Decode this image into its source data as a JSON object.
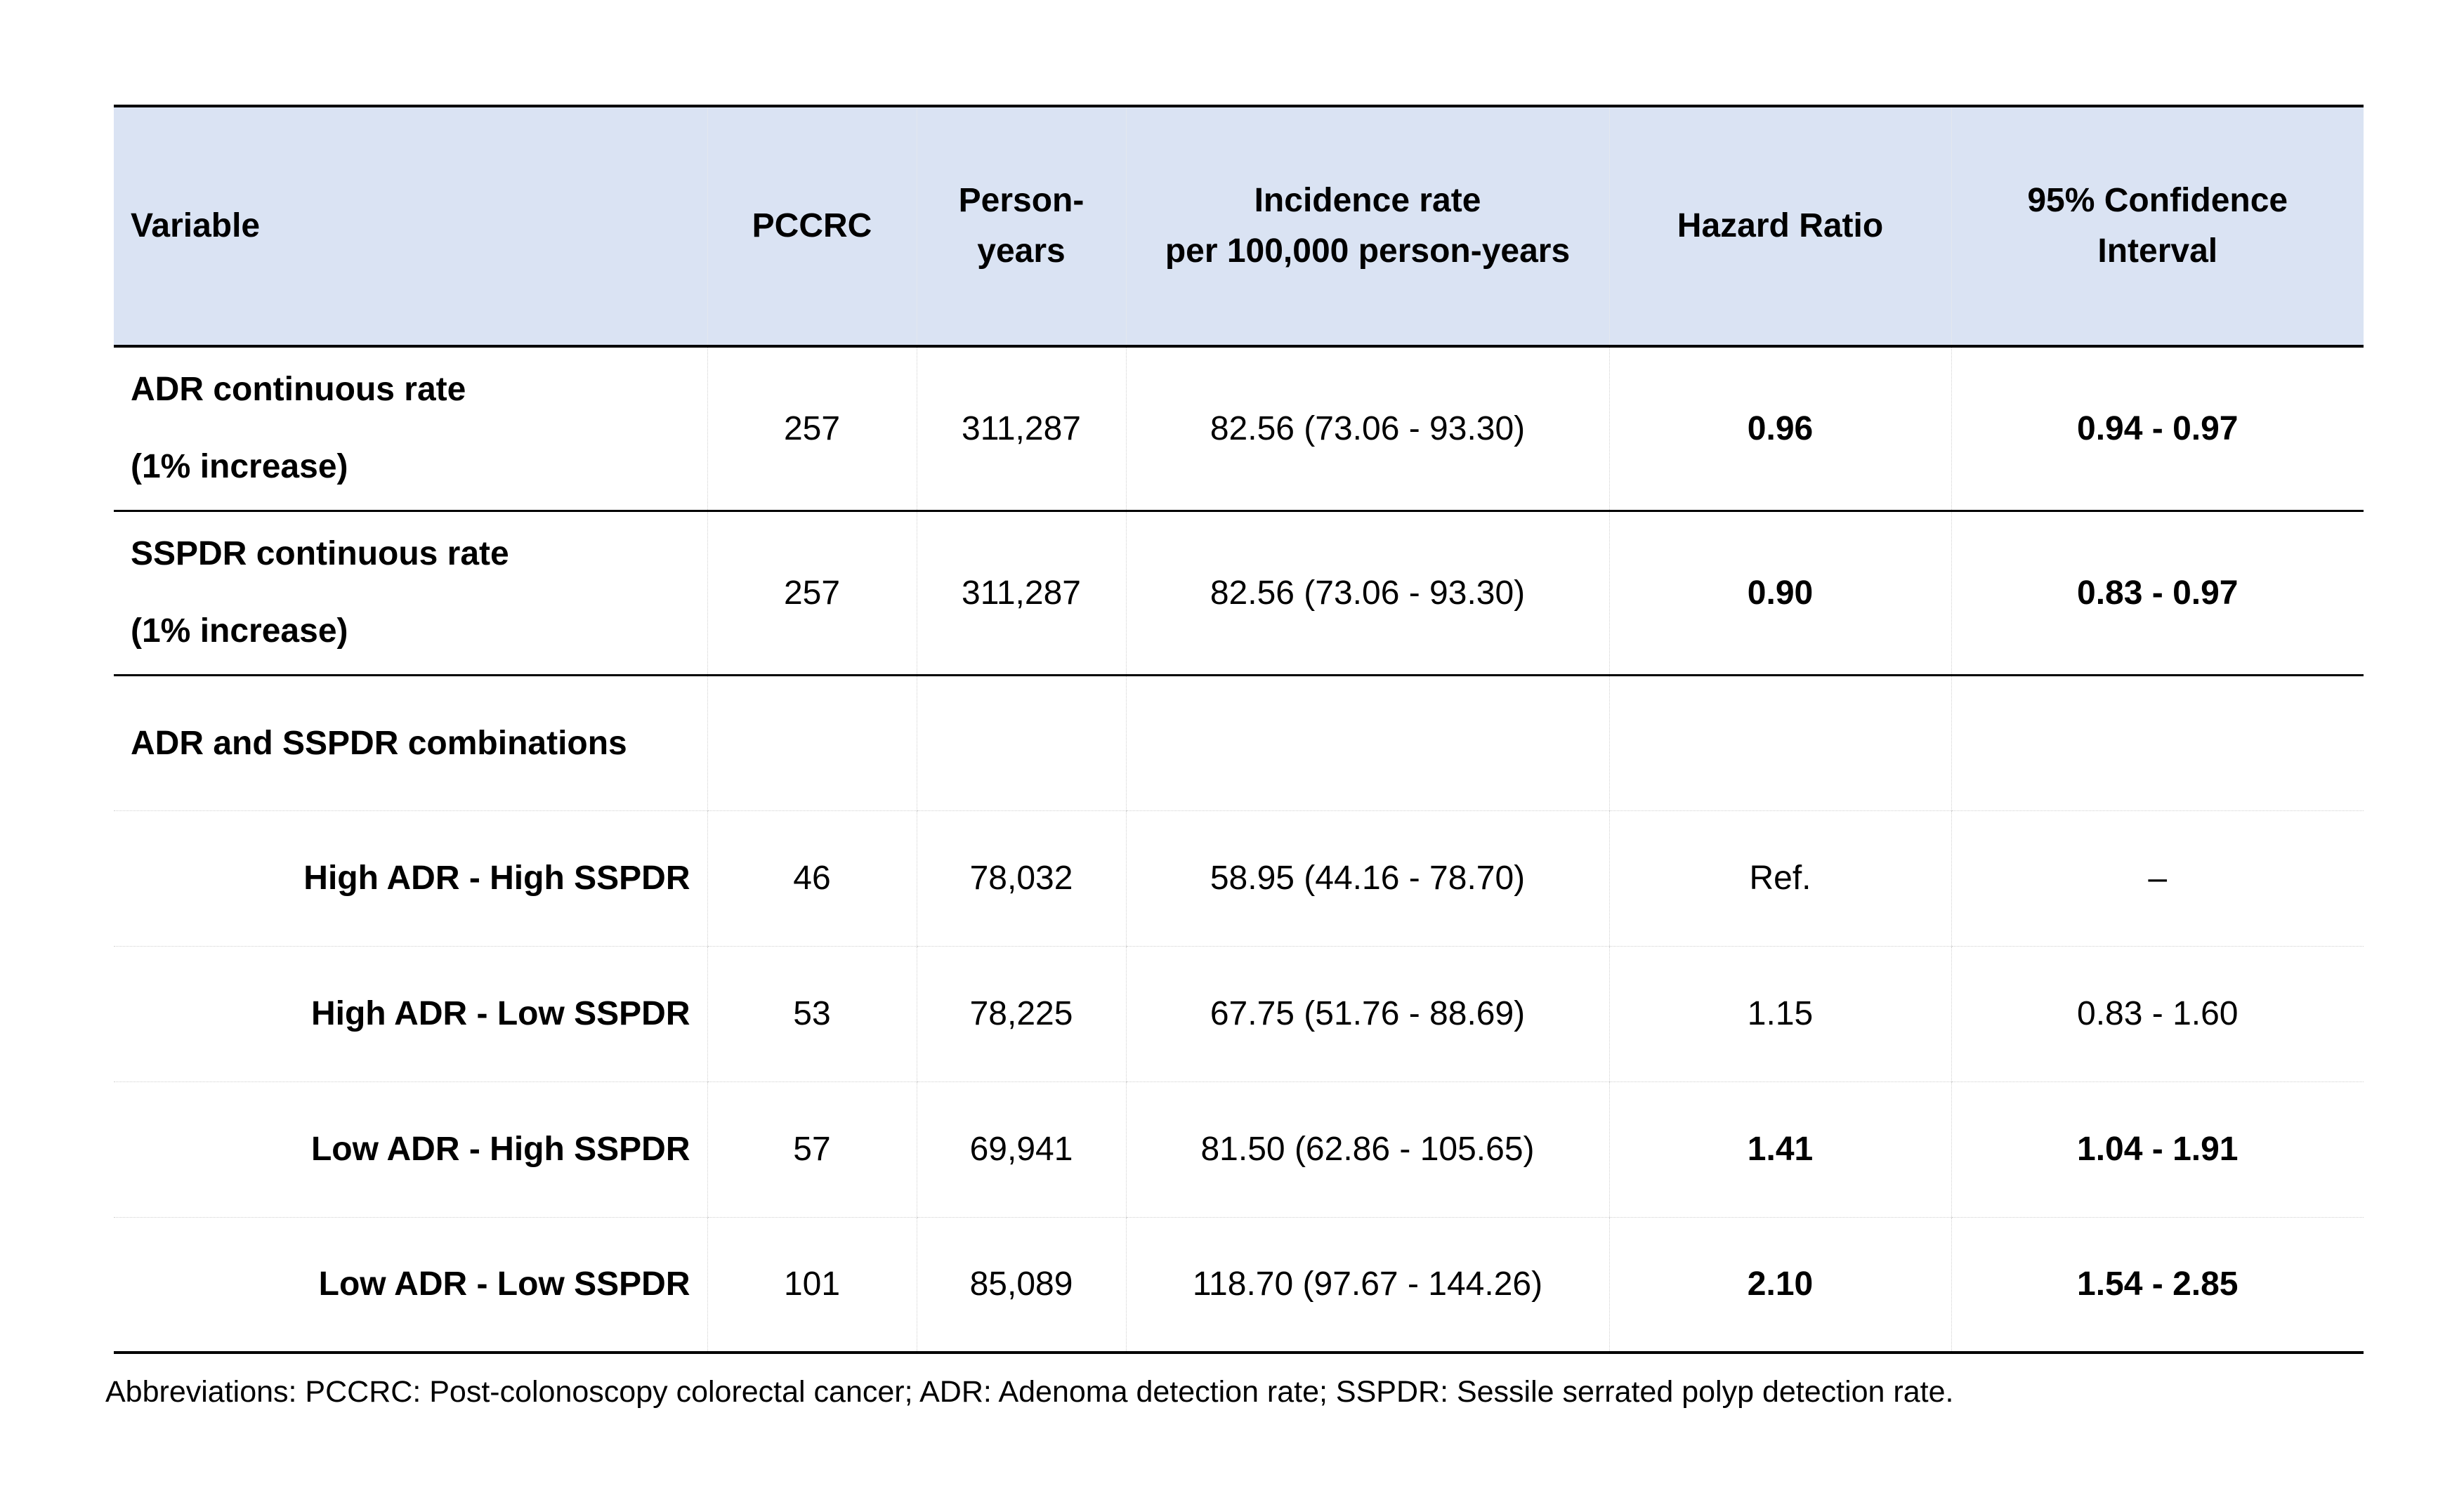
{
  "table": {
    "headers": {
      "variable": "Variable",
      "pccrc": "PCCRC",
      "person_years_1": "Person-",
      "person_years_2": "years",
      "incidence_1": "Incidence rate",
      "incidence_2": "per 100,000 person-years",
      "hazard_ratio": "Hazard Ratio",
      "ci_1": "95% Confidence",
      "ci_2": "Interval"
    },
    "rows": [
      {
        "label_1": "ADR continuous rate",
        "label_2": "(1% increase)",
        "pccrc": "257",
        "person_years": "311,287",
        "incidence": "82.56 (73.06 - 93.30)",
        "hazard_ratio": "0.96",
        "ci": "0.94 - 0.97"
      },
      {
        "label_1": "SSPDR continuous rate",
        "label_2": "(1% increase)",
        "pccrc": "257",
        "person_years": "311,287",
        "incidence": "82.56 (73.06 - 93.30)",
        "hazard_ratio": "0.90",
        "ci": "0.83 - 0.97"
      }
    ],
    "group_label": "ADR and SSPDR combinations",
    "sub_rows": [
      {
        "label": "High ADR - High SSPDR",
        "pccrc": "46",
        "person_years": "78,032",
        "incidence": "58.95 (44.16 - 78.70)",
        "hazard_ratio": "Ref.",
        "ci": "–"
      },
      {
        "label": "High ADR - Low SSPDR",
        "pccrc": "53",
        "person_years": "78,225",
        "incidence": "67.75 (51.76 - 88.69)",
        "hazard_ratio": "1.15",
        "ci": "0.83 - 1.60"
      },
      {
        "label": "Low ADR - High SSPDR",
        "pccrc": "57",
        "person_years": "69,941",
        "incidence": "81.50 (62.86 - 105.65)",
        "hazard_ratio": "1.41",
        "ci": "1.04 - 1.91"
      },
      {
        "label": "Low ADR - Low SSPDR",
        "pccrc": "101",
        "person_years": "85,089",
        "incidence": "118.70 (97.67 - 144.26)",
        "hazard_ratio": "2.10",
        "ci": "1.54 - 2.85"
      }
    ]
  },
  "footnote": "Abbreviations: PCCRC: Post-colonoscopy colorectal cancer; ADR: Adenoma detection rate; SSPDR: Sessile serrated polyp detection rate.",
  "colors": {
    "header_background": "#dae3f3",
    "rule": "#000000"
  }
}
